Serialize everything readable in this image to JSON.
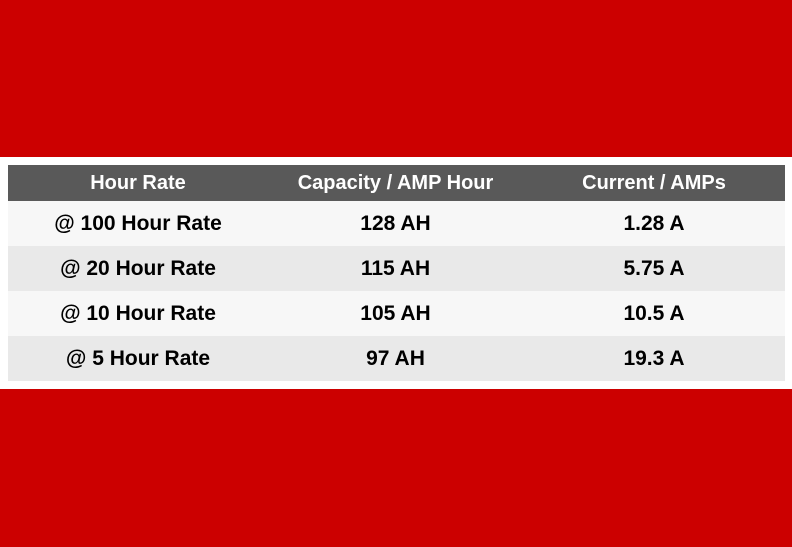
{
  "colors": {
    "band": "#cc0000",
    "header_bg": "#595959",
    "header_text": "#ffffff",
    "row_light": "#f7f7f7",
    "row_dark": "#e9e9e9"
  },
  "table": {
    "headers": [
      "Hour Rate",
      "Capacity / AMP Hour",
      "Current / AMPs"
    ],
    "rows": [
      [
        "@ 100 Hour Rate",
        "128 AH",
        "1.28 A"
      ],
      [
        "@ 20 Hour Rate",
        "115 AH",
        "5.75 A"
      ],
      [
        "@ 10 Hour Rate",
        "105 AH",
        "10.5 A"
      ],
      [
        "@ 5 Hour Rate",
        "97 AH",
        "19.3 A"
      ]
    ]
  }
}
